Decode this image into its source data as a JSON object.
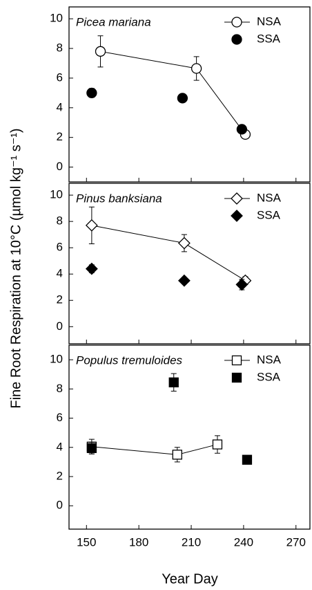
{
  "chart_data": [
    {
      "type": "scatter",
      "title": "Picea mariana",
      "marker": "circle",
      "color": "#000000",
      "xlim": [
        140,
        278
      ],
      "ylim": [
        -1,
        10.8
      ],
      "yticks": [
        0,
        2,
        4,
        6,
        8,
        10
      ],
      "series": [
        {
          "name": "NSA",
          "filled": false,
          "line": true,
          "x": [
            158,
            213,
            241
          ],
          "values": [
            7.8,
            6.65,
            2.2
          ],
          "errors": [
            1.05,
            0.8,
            0.2
          ]
        },
        {
          "name": "SSA",
          "filled": true,
          "line": false,
          "x": [
            153,
            205,
            239
          ],
          "values": [
            5.0,
            4.65,
            2.55
          ],
          "errors": [
            0.3,
            0.15,
            0.2
          ]
        }
      ]
    },
    {
      "type": "scatter",
      "title": "Pinus banksiana",
      "marker": "diamond",
      "color": "#000000",
      "ylabel": "Fine Root Respiration at 10°C (µmol kg⁻¹ s⁻¹)",
      "xlim": [
        140,
        278
      ],
      "ylim": [
        -1.3,
        10.9
      ],
      "yticks": [
        0,
        2,
        4,
        6,
        8,
        10
      ],
      "series": [
        {
          "name": "NSA",
          "filled": false,
          "line": true,
          "x": [
            153,
            206,
            241
          ],
          "values": [
            7.7,
            6.35,
            3.5
          ],
          "errors": [
            1.4,
            0.65,
            0.3
          ]
        },
        {
          "name": "SSA",
          "filled": true,
          "line": false,
          "x": [
            153,
            206,
            239
          ],
          "values": [
            4.4,
            3.5,
            3.2
          ],
          "errors": [
            0.3,
            0.15,
            0.4
          ]
        }
      ]
    },
    {
      "type": "scatter",
      "title": "Populus tremuloides",
      "marker": "square",
      "color": "#000000",
      "xlabel": "Year Day",
      "xticks": [
        150,
        180,
        210,
        240,
        270
      ],
      "xlim": [
        140,
        278
      ],
      "ylim": [
        -1.6,
        11
      ],
      "yticks": [
        0,
        2,
        4,
        6,
        8,
        10
      ],
      "series": [
        {
          "name": "NSA",
          "filled": false,
          "line": true,
          "x": [
            153,
            202,
            225
          ],
          "values": [
            4.05,
            3.5,
            4.2
          ],
          "errors": [
            0.5,
            0.5,
            0.6
          ]
        },
        {
          "name": "SSA",
          "filled": true,
          "line": false,
          "x": [
            153,
            200,
            242
          ],
          "values": [
            3.95,
            8.45,
            3.15
          ],
          "errors": [
            0.4,
            0.6,
            0.3
          ]
        }
      ]
    }
  ]
}
